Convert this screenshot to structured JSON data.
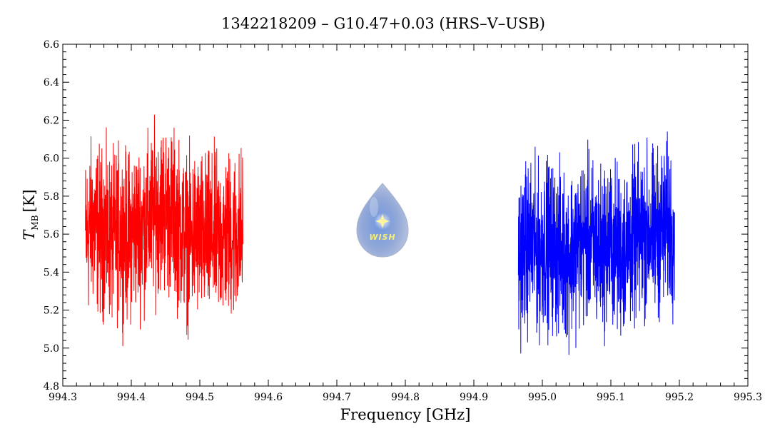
{
  "chart_data": {
    "type": "line",
    "title": "1342218209 – G10.47+0.03 (HRS–V–USB)",
    "xlabel": "Frequency [GHz]",
    "ylabel_main": "T",
    "ylabel_sub": "MB",
    "ylabel_unit": "[K]",
    "xlim": [
      994.3,
      995.3
    ],
    "ylim": [
      4.8,
      6.6
    ],
    "x_ticks": [
      994.3,
      994.4,
      994.5,
      994.6,
      994.7,
      994.8,
      994.9,
      995.0,
      995.1,
      995.2,
      995.3
    ],
    "x_tick_labels": [
      "994.3",
      "994.4",
      "994.5",
      "994.6",
      "994.7",
      "994.8",
      "994.9",
      "995.0",
      "995.1",
      "995.2",
      "995.3"
    ],
    "y_ticks": [
      4.8,
      5.0,
      5.2,
      5.4,
      5.6,
      5.8,
      6.0,
      6.2,
      6.4,
      6.6
    ],
    "y_tick_labels": [
      "4.8",
      "5.0",
      "5.2",
      "5.4",
      "5.6",
      "5.8",
      "6.0",
      "6.2",
      "6.4",
      "6.6"
    ],
    "grid": false,
    "legend": "none",
    "series": [
      {
        "color": "#ff0000",
        "x": [
          994.333,
          994.343,
          994.353,
          994.363,
          994.373,
          994.383,
          994.393,
          994.403,
          994.413,
          994.423,
          994.433,
          994.443,
          994.453,
          994.463,
          994.473,
          994.483,
          994.493,
          994.503,
          994.513,
          994.523,
          994.533,
          994.543,
          994.553,
          994.563
        ],
        "y": [
          5.58,
          5.66,
          5.62,
          5.6,
          5.57,
          5.63,
          5.58,
          5.62,
          5.64,
          5.66,
          5.71,
          5.75,
          5.72,
          5.69,
          5.62,
          5.57,
          5.6,
          5.58,
          5.57,
          5.59,
          5.58,
          5.6,
          5.59,
          5.61
        ]
      },
      {
        "color": "#0000ff",
        "x": [
          994.965,
          994.975,
          994.985,
          994.995,
          995.005,
          995.015,
          995.025,
          995.035,
          995.045,
          995.055,
          995.065,
          995.075,
          995.085,
          995.095,
          995.105,
          995.115,
          995.125,
          995.135,
          995.145,
          995.155,
          995.165,
          995.175,
          995.185,
          995.193
        ],
        "y": [
          5.49,
          5.52,
          5.55,
          5.5,
          5.56,
          5.53,
          5.51,
          5.48,
          5.52,
          5.55,
          5.58,
          5.54,
          5.51,
          5.56,
          5.53,
          5.5,
          5.55,
          5.57,
          5.59,
          5.62,
          5.6,
          5.63,
          5.65,
          5.62
        ]
      }
    ],
    "logo_text": "WISH"
  }
}
